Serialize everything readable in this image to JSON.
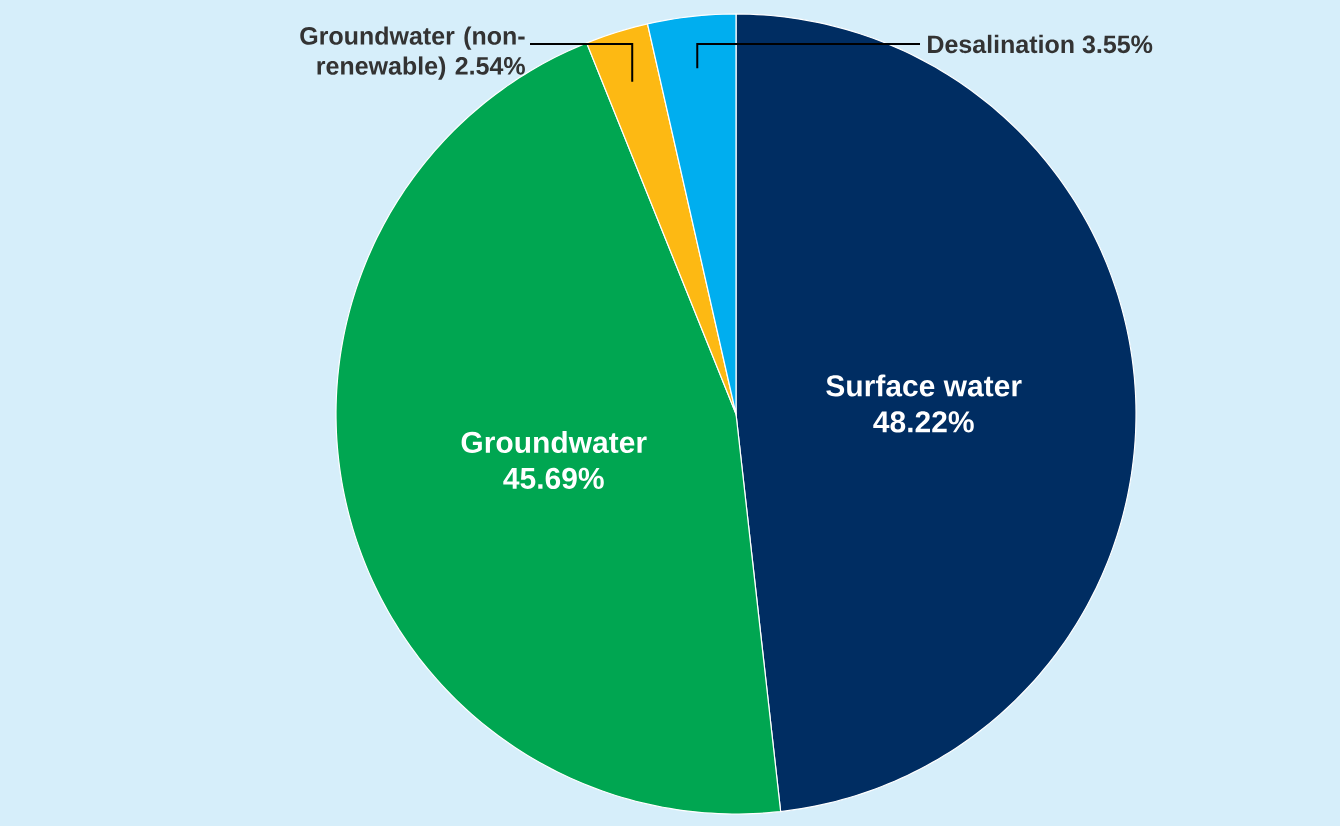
{
  "chart_data": {
    "type": "pie",
    "categories": [
      "Surface water",
      "Groundwater",
      "Groundwater (non- renewable)",
      "Desalination"
    ],
    "values": [
      48.22,
      45.69,
      2.54,
      3.55
    ],
    "value_labels": [
      "48.22%",
      "45.69%",
      "2.54%",
      "3.55%"
    ],
    "colors": [
      "#002d62",
      "#00a651",
      "#fdb913",
      "#00aeef"
    ]
  }
}
